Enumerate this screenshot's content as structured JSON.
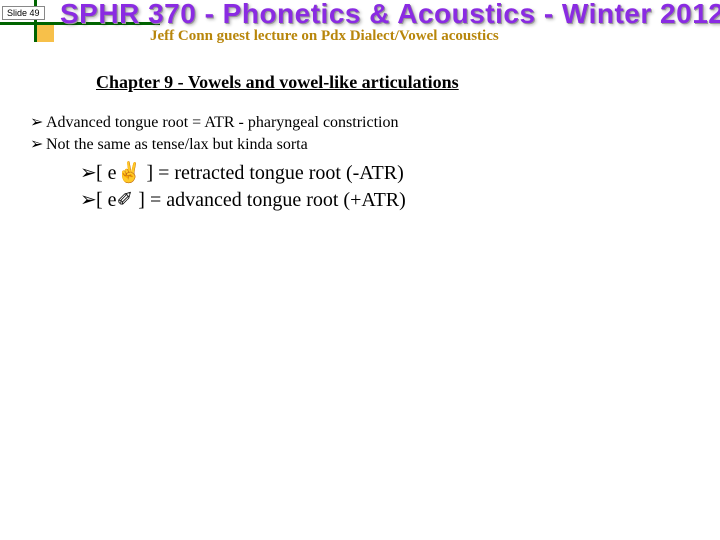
{
  "slide_number": "Slide 49",
  "header": {
    "title": "SPHR 370 - Phonetics & Acoustics - Winter 2012",
    "subtitle": "Jeff Conn guest lecture on Pdx Dialect/Vowel acoustics",
    "title_color": "#8a2be2",
    "subtitle_color": "#b8860b",
    "decor_line_color": "#006400",
    "decor_box_color": "#f7c04a"
  },
  "chapter": "Chapter 9 - Vowels and vowel-like articulations",
  "bullets": {
    "arrow": "➢",
    "items": [
      "Advanced tongue root = ATR - pharyngeal constriction",
      "Not the same as tense/lax but kinda sorta"
    ]
  },
  "sub_bullets": {
    "arrow": "➢",
    "items": [
      {
        "symbol": "[ e✌ ]",
        "text": " = retracted tongue root (-ATR)"
      },
      {
        "symbol": "[ e✐ ]",
        "text": " = advanced tongue root (+ATR)"
      }
    ]
  },
  "style": {
    "body_font": "Times New Roman",
    "header_font": "Arial Black",
    "body_fontsize": 16,
    "sub_fontsize": 20,
    "chapter_fontsize": 18,
    "background_color": "#ffffff"
  }
}
